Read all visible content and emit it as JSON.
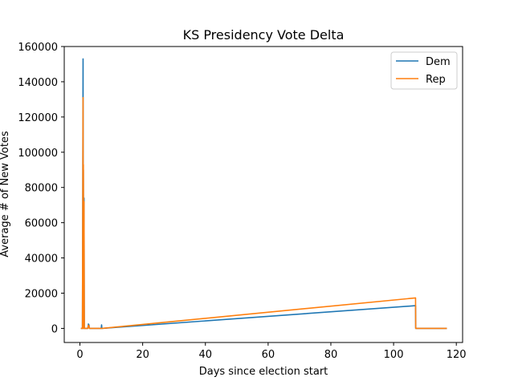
{
  "chart_data": {
    "type": "line",
    "title": "KS Presidency Vote Delta",
    "xlabel": "Days since election start",
    "ylabel": "Average # of New Votes",
    "xlim": [
      -5,
      122
    ],
    "ylim": [
      -8000,
      160000
    ],
    "xticks": [
      0,
      20,
      40,
      60,
      80,
      100,
      120
    ],
    "yticks": [
      0,
      20000,
      40000,
      60000,
      80000,
      100000,
      120000,
      140000,
      160000
    ],
    "legend_position": "top-right",
    "grid": false,
    "series": [
      {
        "name": "Dem",
        "color": "#1f77b4",
        "x": [
          0.3,
          0.8,
          1.0,
          1.05,
          1.1,
          1.2,
          1.3,
          1.4,
          2.0,
          2.5,
          2.7,
          2.8,
          2.9,
          3.0,
          6.8,
          6.9,
          7.0,
          107,
          107.05,
          117
        ],
        "y": [
          0,
          0,
          153000,
          0,
          90000,
          0,
          74000,
          0,
          0,
          0,
          2500,
          1000,
          2000,
          0,
          0,
          2000,
          0,
          12900,
          0,
          0
        ]
      },
      {
        "name": "Rep",
        "color": "#ff7f0e",
        "x": [
          0.3,
          0.8,
          1.0,
          1.05,
          1.1,
          1.2,
          1.3,
          1.4,
          2.0,
          2.5,
          2.7,
          2.8,
          2.9,
          3.0,
          7.0,
          107,
          107.05,
          117
        ],
        "y": [
          0,
          0,
          131000,
          0,
          93000,
          0,
          72000,
          0,
          0,
          0,
          1800,
          700,
          1400,
          0,
          0,
          17300,
          0,
          0
        ]
      }
    ]
  }
}
